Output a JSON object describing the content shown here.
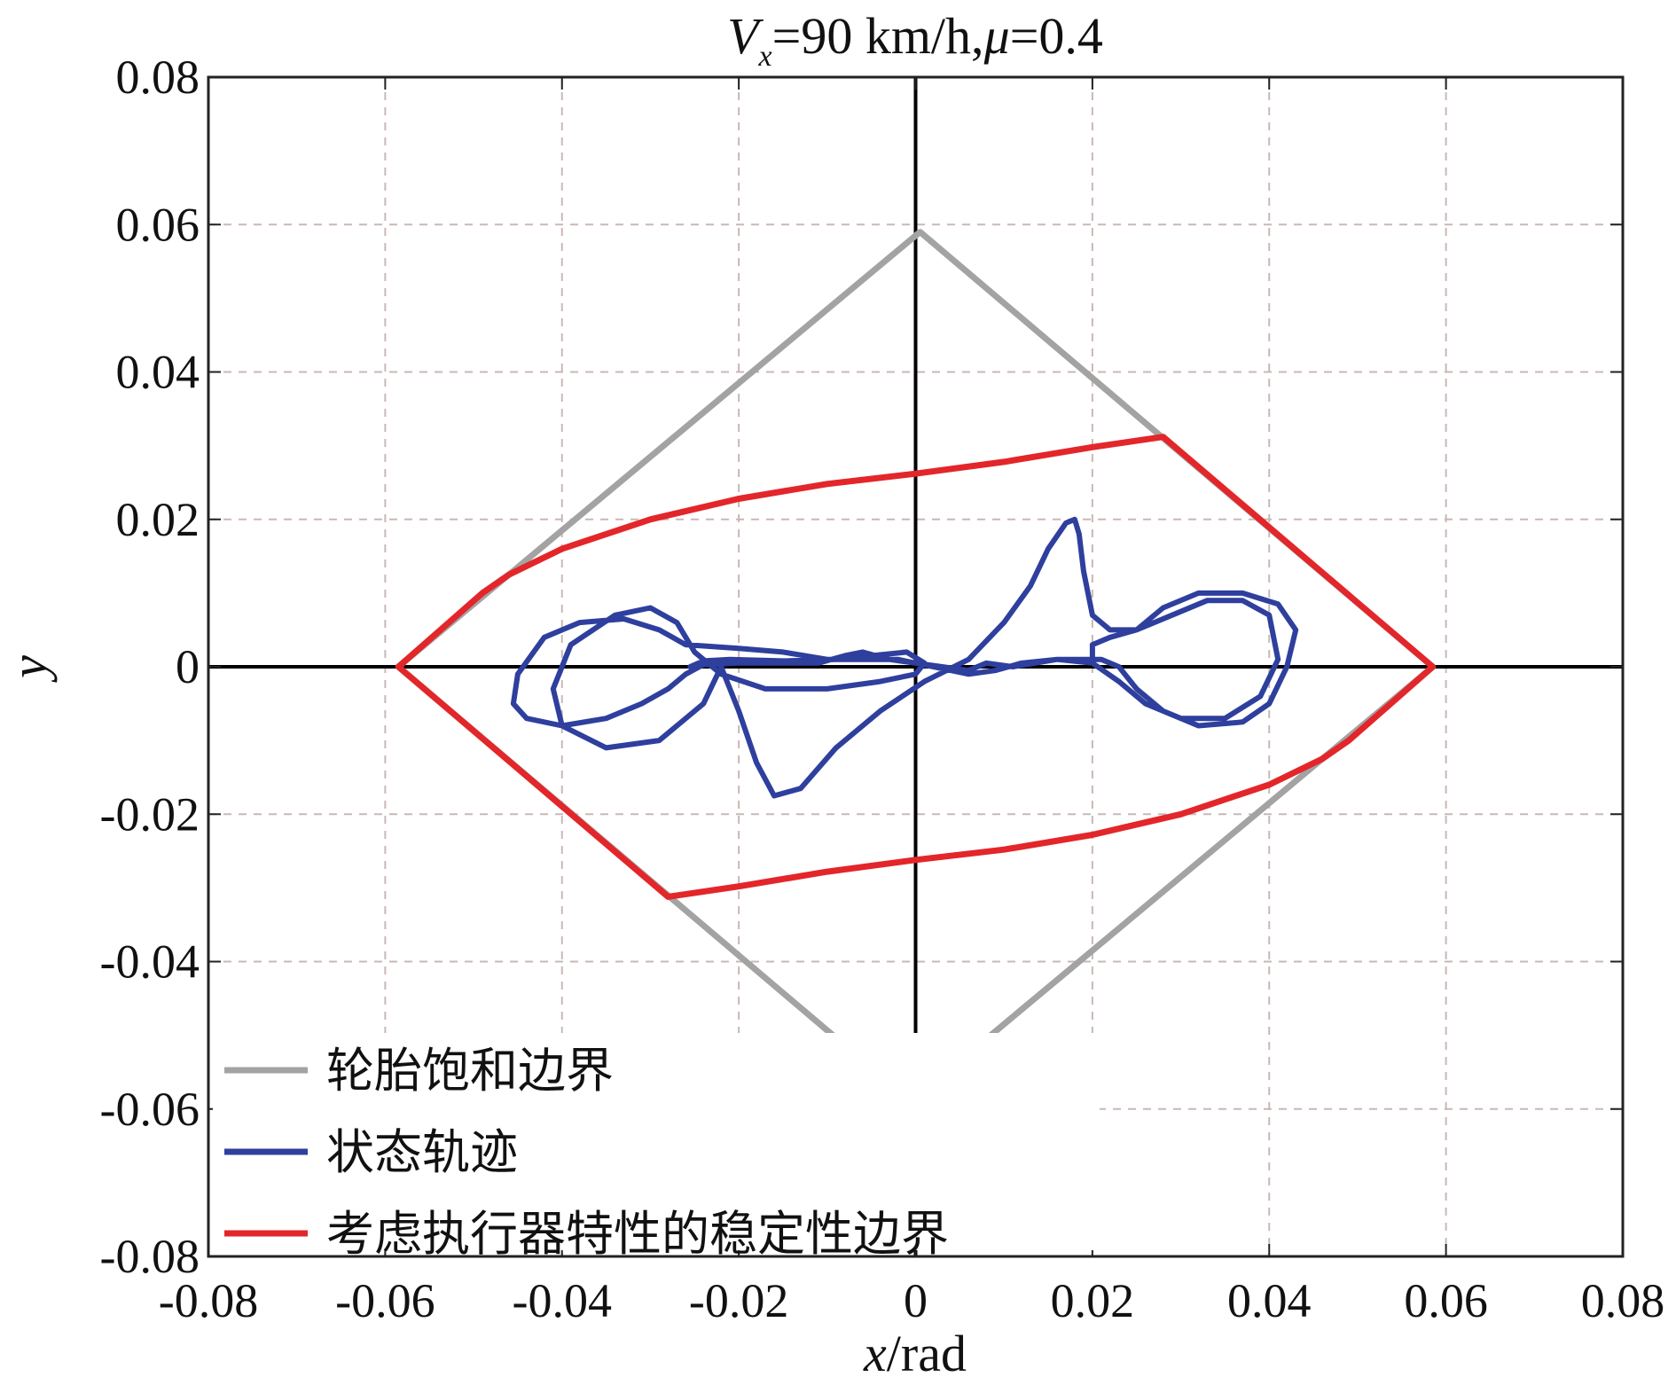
{
  "chart_data": {
    "type": "line",
    "title": {
      "var": "V",
      "var_sub": "x",
      "speed": "=90 km/h,",
      "mu": "μ",
      "mu_value": "=0.4"
    },
    "xlabel": {
      "var": "x",
      "unit": "/rad"
    },
    "ylabel": "y",
    "xlim": [
      -0.08,
      0.08
    ],
    "ylim": [
      -0.08,
      0.08
    ],
    "x_ticks": [
      -0.08,
      -0.06,
      -0.04,
      -0.02,
      0,
      0.02,
      0.04,
      0.06,
      0.08
    ],
    "y_ticks": [
      -0.08,
      -0.06,
      -0.04,
      -0.02,
      0,
      0.02,
      0.04,
      0.06,
      0.08
    ],
    "x_tick_labels": [
      "-0.08",
      "-0.06",
      "-0.04",
      "-0.02",
      "0",
      "0.02",
      "0.04",
      "0.06",
      "0.08"
    ],
    "y_tick_labels": [
      "-0.08",
      "-0.06",
      "-0.04",
      "-0.02",
      "0",
      "0.02",
      "0.04",
      "0.06",
      "0.08"
    ],
    "grid": true,
    "legend_position": "bottom-left",
    "series": [
      {
        "name": "轮胎饱和边界",
        "color": "#a3a3a3",
        "points": [
          [
            -0.0585,
            0
          ],
          [
            0.0005,
            0.059
          ],
          [
            0.0585,
            0
          ],
          [
            -0.0005,
            -0.059
          ],
          [
            -0.0585,
            0
          ]
        ]
      },
      {
        "name": "状态轨迹",
        "color": "#2e3f9e",
        "points": [
          [
            -0.0255,
            0.0
          ],
          [
            -0.024,
            0.0008
          ],
          [
            -0.021,
            0.001
          ],
          [
            -0.015,
            0.0008
          ],
          [
            -0.009,
            0.001
          ],
          [
            -0.005,
            0.0015
          ],
          [
            -0.001,
            0.002
          ],
          [
            0.001,
            0.0005
          ],
          [
            0.0,
            -0.001
          ],
          [
            -0.004,
            -0.002
          ],
          [
            -0.01,
            -0.003
          ],
          [
            -0.017,
            -0.003
          ],
          [
            -0.022,
            -0.001
          ],
          [
            -0.025,
            0.002
          ],
          [
            -0.027,
            0.006
          ],
          [
            -0.03,
            0.008
          ],
          [
            -0.034,
            0.007
          ],
          [
            -0.039,
            0.003
          ],
          [
            -0.041,
            -0.003
          ],
          [
            -0.04,
            -0.008
          ],
          [
            -0.035,
            -0.011
          ],
          [
            -0.029,
            -0.01
          ],
          [
            -0.024,
            -0.005
          ],
          [
            -0.022,
            0.0
          ],
          [
            -0.02,
            -0.006
          ],
          [
            -0.018,
            -0.013
          ],
          [
            -0.016,
            -0.0175
          ],
          [
            -0.013,
            -0.0165
          ],
          [
            -0.009,
            -0.011
          ],
          [
            -0.004,
            -0.006
          ],
          [
            0.001,
            -0.002
          ],
          [
            0.006,
            0.001
          ],
          [
            0.01,
            0.006
          ],
          [
            0.013,
            0.011
          ],
          [
            0.015,
            0.016
          ],
          [
            0.017,
            0.0195
          ],
          [
            0.018,
            0.02
          ],
          [
            0.0185,
            0.018
          ],
          [
            0.019,
            0.013
          ],
          [
            0.02,
            0.007
          ],
          [
            0.022,
            0.005
          ],
          [
            0.025,
            0.005
          ],
          [
            0.028,
            0.008
          ],
          [
            0.032,
            0.01
          ],
          [
            0.037,
            0.01
          ],
          [
            0.041,
            0.0085
          ],
          [
            0.043,
            0.005
          ],
          [
            0.042,
            0.0
          ],
          [
            0.04,
            -0.005
          ],
          [
            0.037,
            -0.0075
          ],
          [
            0.032,
            -0.008
          ],
          [
            0.028,
            -0.006
          ],
          [
            0.025,
            -0.003
          ],
          [
            0.023,
            0.0
          ],
          [
            0.021,
            0.001
          ],
          [
            0.016,
            0.001
          ],
          [
            0.011,
            0.0
          ],
          [
            0.008,
            0.0005
          ],
          [
            0.006,
            -0.0005
          ],
          [
            0.003,
            0.0
          ],
          [
            0.0,
            0.0005
          ],
          [
            -0.003,
            0.001
          ],
          [
            -0.006,
            0.002
          ],
          [
            -0.008,
            0.0015
          ],
          [
            -0.011,
            0.0005
          ],
          [
            -0.015,
            0.0005
          ],
          [
            -0.02,
            0.0005
          ],
          [
            -0.024,
            0.0003
          ],
          [
            -0.026,
            -0.001
          ],
          [
            -0.028,
            -0.003
          ],
          [
            -0.031,
            -0.005
          ],
          [
            -0.035,
            -0.007
          ],
          [
            -0.04,
            -0.008
          ],
          [
            -0.044,
            -0.007
          ],
          [
            -0.0455,
            -0.005
          ],
          [
            -0.045,
            -0.001
          ],
          [
            -0.042,
            0.004
          ],
          [
            -0.038,
            0.006
          ],
          [
            -0.033,
            0.0065
          ],
          [
            -0.029,
            0.005
          ],
          [
            -0.026,
            0.003
          ],
          [
            -0.02,
            0.0025
          ],
          [
            -0.015,
            0.002
          ],
          [
            -0.01,
            0.001
          ],
          [
            -0.005,
            0.001
          ],
          [
            -0.002,
            0.001
          ],
          [
            0.002,
            0.0
          ],
          [
            0.006,
            -0.001
          ],
          [
            0.009,
            -0.0005
          ],
          [
            0.012,
            0.0005
          ],
          [
            0.016,
            0.001
          ],
          [
            0.02,
            0.0005
          ],
          [
            0.023,
            -0.002
          ],
          [
            0.026,
            -0.005
          ],
          [
            0.03,
            -0.007
          ],
          [
            0.035,
            -0.007
          ],
          [
            0.039,
            -0.004
          ],
          [
            0.041,
            0.001
          ],
          [
            0.04,
            0.007
          ],
          [
            0.037,
            0.009
          ],
          [
            0.033,
            0.009
          ],
          [
            0.029,
            0.007
          ],
          [
            0.025,
            0.005
          ],
          [
            0.022,
            0.004
          ],
          [
            0.02,
            0.003
          ],
          [
            0.02,
            0.0005
          ]
        ]
      },
      {
        "name": "考虑执行器特性的稳定性边界",
        "color": "#e3262a",
        "points": [
          [
            -0.0585,
            0.0
          ],
          [
            -0.049,
            0.01
          ],
          [
            -0.046,
            0.0125
          ],
          [
            -0.04,
            0.016
          ],
          [
            -0.03,
            0.02
          ],
          [
            -0.02,
            0.0228
          ],
          [
            -0.01,
            0.0248
          ],
          [
            0.0,
            0.0262
          ],
          [
            0.01,
            0.0278
          ],
          [
            0.02,
            0.0298
          ],
          [
            0.028,
            0.0312
          ],
          [
            0.0585,
            0.0
          ],
          [
            0.049,
            -0.01
          ],
          [
            0.046,
            -0.0125
          ],
          [
            0.04,
            -0.016
          ],
          [
            0.03,
            -0.02
          ],
          [
            0.02,
            -0.0228
          ],
          [
            0.01,
            -0.0248
          ],
          [
            0.0,
            -0.0262
          ],
          [
            -0.01,
            -0.0278
          ],
          [
            -0.02,
            -0.0298
          ],
          [
            -0.028,
            -0.0312
          ],
          [
            -0.0585,
            0.0
          ]
        ]
      }
    ]
  }
}
